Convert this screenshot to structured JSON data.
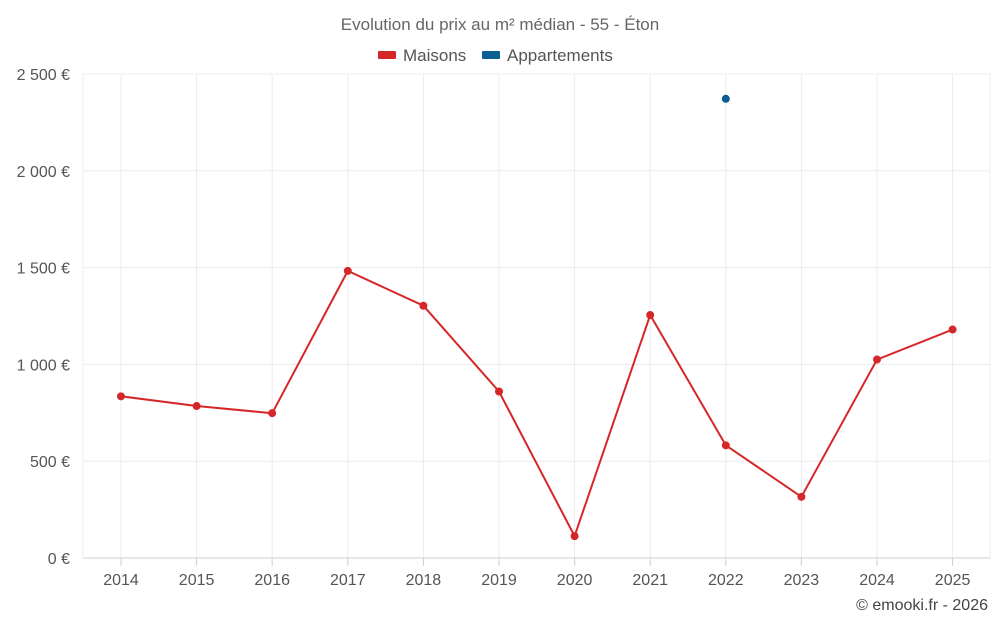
{
  "chart_data": {
    "type": "line",
    "title": "Evolution du prix au m² médian - 55 - Éton",
    "categories": [
      "2014",
      "2015",
      "2016",
      "2017",
      "2018",
      "2019",
      "2020",
      "2021",
      "2022",
      "2023",
      "2024",
      "2025"
    ],
    "series": [
      {
        "name": "Maisons",
        "color": "#d62728",
        "values": [
          835,
          785,
          748,
          1483,
          1303,
          860,
          113,
          1255,
          582,
          316,
          1025,
          1180
        ]
      },
      {
        "name": "Appartements",
        "color": "#0a5e93",
        "values": [
          null,
          null,
          null,
          null,
          null,
          null,
          null,
          null,
          2372,
          null,
          null,
          null
        ]
      }
    ],
    "y_ticks": [
      0,
      500,
      1000,
      1500,
      2000,
      2500
    ],
    "y_tick_labels": [
      "0 €",
      "500 €",
      "1 000 €",
      "1 500 €",
      "2 000 €",
      "2 500 €"
    ],
    "ylim": [
      0,
      2500
    ],
    "grid": true,
    "legend_position": "top-center",
    "xlabel": "",
    "ylabel": ""
  },
  "credit": "© emooki.fr - 2026"
}
